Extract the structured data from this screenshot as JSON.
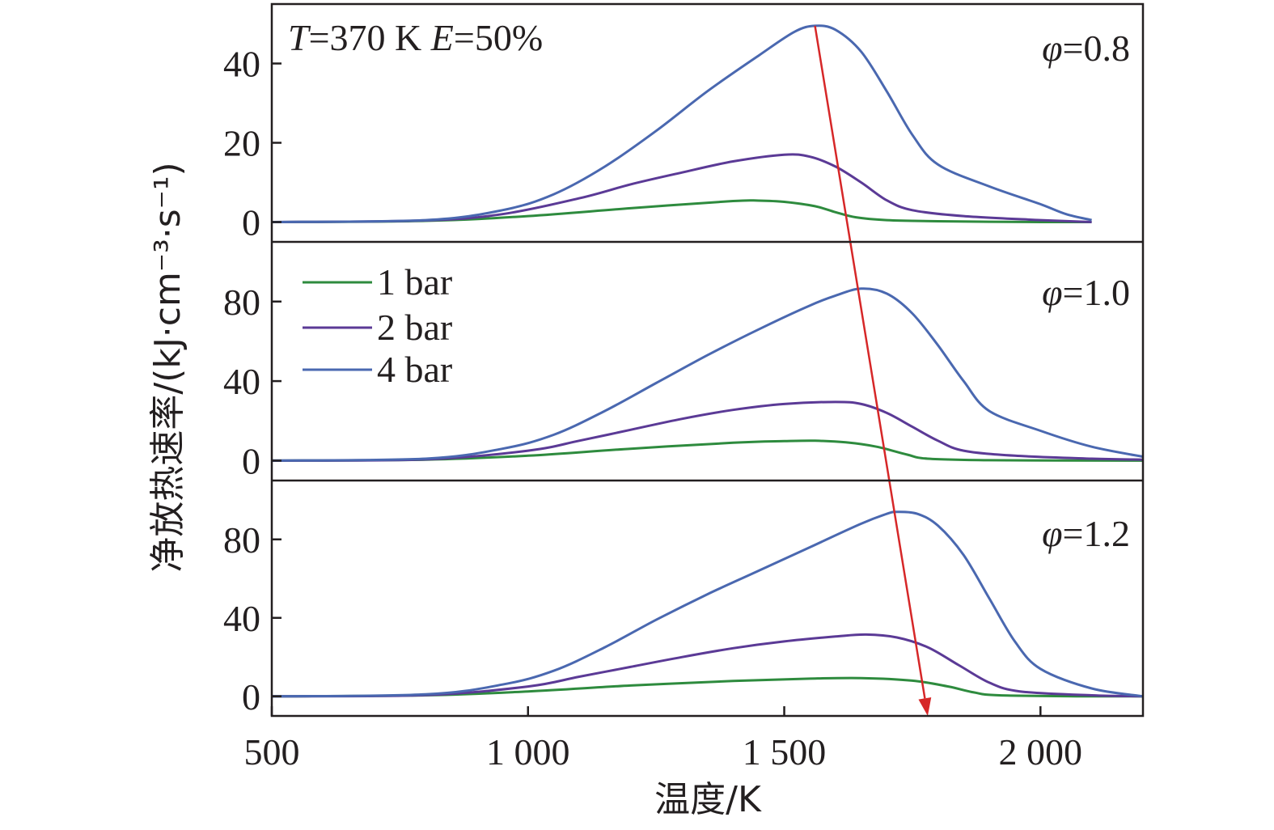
{
  "chart_data": {
    "type": "line",
    "xlabel": "温度/K",
    "ylabel": "净放热速率/(kJ·cm⁻³·s⁻¹)",
    "xlim": [
      500,
      2200
    ],
    "x_ticks": [
      500,
      1000,
      1500,
      2000
    ],
    "x_tick_labels": [
      "500",
      "1 000",
      "1 500",
      "2 000"
    ],
    "condition_prefix": "T",
    "condition_T": "=370 K ",
    "condition_E_prefix": "E",
    "condition_E": "=50%",
    "legend": {
      "placement": "top-left of middle panel",
      "entries": [
        "1 bar",
        "2 bar",
        "4 bar"
      ]
    },
    "colors": {
      "1 bar": "#2e8b3e",
      "2 bar": "#5b3a96",
      "4 bar": "#4a68b0",
      "arrow": "#d62728",
      "axis": "#231f20"
    },
    "panels": [
      {
        "label_prefix": "φ",
        "label_value": "=0.8",
        "ylim": [
          -5,
          55
        ],
        "y_ticks": [
          0,
          20,
          40
        ],
        "series": [
          {
            "name": "1 bar",
            "points": [
              [
                500,
                0
              ],
              [
                800,
                0.3
              ],
              [
                1000,
                1.5
              ],
              [
                1200,
                3.5
              ],
              [
                1400,
                5.3
              ],
              [
                1450,
                5.4
              ],
              [
                1500,
                5.1
              ],
              [
                1560,
                4
              ],
              [
                1600,
                2.5
              ],
              [
                1640,
                1.2
              ],
              [
                1700,
                0.5
              ],
              [
                1800,
                0.2
              ],
              [
                2000,
                0
              ],
              [
                2100,
                0
              ]
            ]
          },
          {
            "name": "2 bar",
            "points": [
              [
                500,
                0
              ],
              [
                800,
                0.4
              ],
              [
                950,
                2
              ],
              [
                1100,
                6
              ],
              [
                1200,
                9.5
              ],
              [
                1300,
                12.5
              ],
              [
                1400,
                15.3
              ],
              [
                1500,
                17
              ],
              [
                1550,
                16.5
              ],
              [
                1600,
                14
              ],
              [
                1650,
                10
              ],
              [
                1700,
                5.5
              ],
              [
                1750,
                3
              ],
              [
                1850,
                1.5
              ],
              [
                2000,
                0.5
              ],
              [
                2100,
                0
              ]
            ]
          },
          {
            "name": "4 bar",
            "points": [
              [
                500,
                0
              ],
              [
                800,
                0.5
              ],
              [
                950,
                3
              ],
              [
                1050,
                7
              ],
              [
                1150,
                14
              ],
              [
                1250,
                23
              ],
              [
                1350,
                33
              ],
              [
                1450,
                42
              ],
              [
                1520,
                48
              ],
              [
                1560,
                49.5
              ],
              [
                1600,
                48.5
              ],
              [
                1650,
                43
              ],
              [
                1700,
                33
              ],
              [
                1750,
                22
              ],
              [
                1800,
                14.5
              ],
              [
                1900,
                9
              ],
              [
                2000,
                4.5
              ],
              [
                2050,
                2
              ],
              [
                2100,
                0.5
              ]
            ]
          }
        ]
      },
      {
        "label_prefix": "φ",
        "label_value": "=1.0",
        "ylim": [
          -10,
          110
        ],
        "y_ticks": [
          0,
          40,
          80
        ],
        "series": [
          {
            "name": "1 bar",
            "points": [
              [
                500,
                0
              ],
              [
                800,
                0.5
              ],
              [
                1000,
                2.5
              ],
              [
                1200,
                6
              ],
              [
                1400,
                9
              ],
              [
                1500,
                9.8
              ],
              [
                1560,
                10
              ],
              [
                1620,
                9.2
              ],
              [
                1680,
                7
              ],
              [
                1740,
                3
              ],
              [
                1780,
                1
              ],
              [
                1900,
                0.2
              ],
              [
                2200,
                0
              ]
            ]
          },
          {
            "name": "2 bar",
            "points": [
              [
                500,
                0
              ],
              [
                800,
                0.6
              ],
              [
                1000,
                5
              ],
              [
                1100,
                10
              ],
              [
                1200,
                15.5
              ],
              [
                1300,
                21
              ],
              [
                1400,
                25.5
              ],
              [
                1500,
                28.5
              ],
              [
                1600,
                29.5
              ],
              [
                1650,
                28.5
              ],
              [
                1700,
                24
              ],
              [
                1750,
                17
              ],
              [
                1800,
                10
              ],
              [
                1850,
                5
              ],
              [
                1950,
                2.5
              ],
              [
                2100,
                1
              ],
              [
                2200,
                0.5
              ]
            ]
          },
          {
            "name": "4 bar",
            "points": [
              [
                500,
                0
              ],
              [
                800,
                1
              ],
              [
                950,
                6
              ],
              [
                1050,
                13
              ],
              [
                1150,
                25
              ],
              [
                1250,
                39
              ],
              [
                1350,
                53
              ],
              [
                1450,
                66
              ],
              [
                1550,
                78
              ],
              [
                1600,
                83
              ],
              [
                1650,
                86.5
              ],
              [
                1700,
                84
              ],
              [
                1750,
                74
              ],
              [
                1800,
                58
              ],
              [
                1850,
                40
              ],
              [
                1900,
                25
              ],
              [
                2000,
                15
              ],
              [
                2100,
                7
              ],
              [
                2200,
                2
              ]
            ]
          }
        ]
      },
      {
        "label_prefix": "φ",
        "label_value": "=1.2",
        "ylim": [
          -10,
          110
        ],
        "y_ticks": [
          0,
          40,
          80
        ],
        "series": [
          {
            "name": "1 bar",
            "points": [
              [
                500,
                0
              ],
              [
                800,
                0.5
              ],
              [
                1000,
                2.5
              ],
              [
                1200,
                5.5
              ],
              [
                1400,
                7.8
              ],
              [
                1550,
                9
              ],
              [
                1650,
                9.3
              ],
              [
                1750,
                8
              ],
              [
                1820,
                5
              ],
              [
                1870,
                2
              ],
              [
                1920,
                0.5
              ],
              [
                2100,
                0
              ],
              [
                2200,
                0
              ]
            ]
          },
          {
            "name": "2 bar",
            "points": [
              [
                500,
                0
              ],
              [
                800,
                0.6
              ],
              [
                1000,
                5
              ],
              [
                1100,
                10
              ],
              [
                1200,
                15
              ],
              [
                1300,
                20
              ],
              [
                1400,
                24.5
              ],
              [
                1500,
                28
              ],
              [
                1600,
                30.5
              ],
              [
                1660,
                31.5
              ],
              [
                1720,
                30
              ],
              [
                1780,
                25
              ],
              [
                1840,
                16
              ],
              [
                1900,
                7
              ],
              [
                1960,
                2.5
              ],
              [
                2100,
                0.5
              ],
              [
                2200,
                0
              ]
            ]
          },
          {
            "name": "4 bar",
            "points": [
              [
                500,
                0
              ],
              [
                800,
                1
              ],
              [
                950,
                6
              ],
              [
                1050,
                13
              ],
              [
                1150,
                25
              ],
              [
                1250,
                39
              ],
              [
                1350,
                52
              ],
              [
                1450,
                64
              ],
              [
                1550,
                76
              ],
              [
                1650,
                88
              ],
              [
                1700,
                93
              ],
              [
                1720,
                94
              ],
              [
                1760,
                93
              ],
              [
                1800,
                87
              ],
              [
                1850,
                72
              ],
              [
                1900,
                50
              ],
              [
                1950,
                28
              ],
              [
                2000,
                14
              ],
              [
                2100,
                4
              ],
              [
                2200,
                0
              ]
            ]
          }
        ]
      }
    ],
    "arrow": {
      "from": {
        "panel": 0,
        "x": 1560,
        "y": 49.5
      },
      "to": {
        "panel": 2,
        "x": 1780,
        "y": -10
      }
    }
  }
}
